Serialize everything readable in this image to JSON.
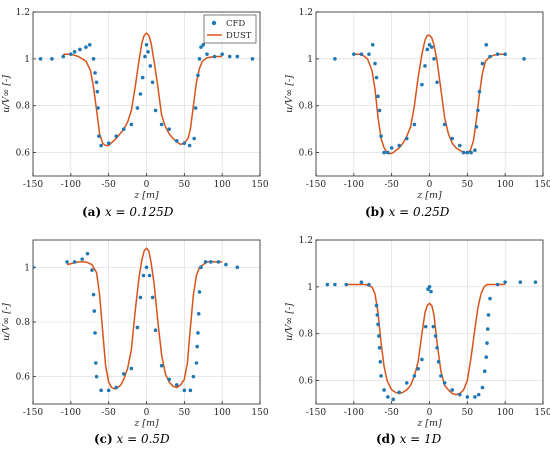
{
  "figure": {
    "legend": {
      "entries": [
        "CFD",
        "DUST"
      ],
      "placement": "top-right"
    },
    "colors": {
      "cfd": "#1f77b4",
      "dust": "#d95319",
      "axis": "#262626",
      "grid": "#d9d9d9"
    }
  },
  "chart_data": [
    {
      "type": "scatter",
      "caption": {
        "letter": "(a)",
        "text": "x = 0.125D"
      },
      "xlabel": "z [m]",
      "ylabel": "u/V∞ [-]",
      "xlim": [
        -150,
        150
      ],
      "ylim": [
        0.5,
        1.2
      ],
      "xticks": [
        "-150",
        "-100",
        "-50",
        "0",
        "50",
        "100",
        "150"
      ],
      "yticks": [
        "0.6",
        "0.8",
        "1",
        "1.2"
      ],
      "legend": [
        "CFD",
        "DUST"
      ],
      "series": [
        {
          "name": "CFD",
          "kind": "markers",
          "x": [
            -140,
            -125,
            -110,
            -100,
            -95,
            -88,
            -80,
            -75,
            -70,
            -68,
            -66,
            -65,
            -64,
            -63,
            -60,
            -50,
            -40,
            -30,
            -20,
            -12,
            -8,
            -5,
            -2,
            0,
            2,
            5,
            8,
            12,
            20,
            30,
            40,
            50,
            57,
            63,
            65,
            68,
            70,
            72,
            75,
            80,
            90,
            100,
            110,
            120,
            140
          ],
          "y": [
            1.0,
            1.0,
            1.01,
            1.02,
            1.03,
            1.04,
            1.05,
            1.06,
            1.0,
            0.94,
            0.9,
            0.86,
            0.79,
            0.67,
            0.63,
            0.64,
            0.67,
            0.7,
            0.72,
            0.79,
            0.85,
            0.92,
            1.01,
            1.06,
            1.03,
            0.97,
            0.9,
            0.78,
            0.72,
            0.7,
            0.65,
            0.64,
            0.63,
            0.66,
            0.79,
            0.93,
            1.0,
            1.05,
            1.06,
            1.02,
            1.01,
            1.02,
            1.01,
            1.01,
            1.0
          ]
        },
        {
          "name": "DUST",
          "kind": "line",
          "x": [
            -110,
            -100,
            -90,
            -80,
            -74,
            -70,
            -66,
            -62,
            -58,
            -54,
            -50,
            -45,
            -40,
            -35,
            -30,
            -25,
            -20,
            -15,
            -10,
            -6,
            -3,
            0,
            3,
            6,
            10,
            15,
            20,
            25,
            30,
            35,
            40,
            45,
            50,
            55,
            58,
            62,
            66,
            70,
            74,
            80,
            90,
            100
          ],
          "y": [
            1.02,
            1.02,
            1.01,
            0.99,
            0.95,
            0.88,
            0.78,
            0.68,
            0.64,
            0.63,
            0.63,
            0.645,
            0.66,
            0.68,
            0.7,
            0.73,
            0.78,
            0.88,
            0.99,
            1.07,
            1.1,
            1.11,
            1.1,
            1.07,
            0.99,
            0.88,
            0.76,
            0.71,
            0.68,
            0.66,
            0.645,
            0.635,
            0.64,
            0.66,
            0.7,
            0.8,
            0.9,
            0.96,
            0.99,
            1.005,
            1.01,
            1.01
          ]
        }
      ]
    },
    {
      "type": "scatter",
      "caption": {
        "letter": "(b)",
        "text": "x = 0.25D"
      },
      "xlabel": "z [m]",
      "ylabel": "u/V∞ [-]",
      "xlim": [
        -150,
        150
      ],
      "ylim": [
        0.5,
        1.2
      ],
      "xticks": [
        "-150",
        "-100",
        "-50",
        "0",
        "50",
        "100",
        "150"
      ],
      "yticks": [
        "0.6",
        "0.8",
        "1",
        "1.2"
      ],
      "legend": [],
      "series": [
        {
          "name": "CFD",
          "kind": "markers",
          "x": [
            -125,
            -100,
            -90,
            -80,
            -75,
            -72,
            -70,
            -68,
            -66,
            -64,
            -60,
            -55,
            -50,
            -40,
            -30,
            -20,
            -10,
            -6,
            -3,
            0,
            3,
            6,
            10,
            20,
            30,
            40,
            45,
            50,
            55,
            60,
            62,
            64,
            66,
            70,
            75,
            80,
            90,
            100,
            125
          ],
          "y": [
            1.0,
            1.02,
            1.02,
            1.02,
            1.06,
            0.98,
            0.92,
            0.84,
            0.78,
            0.67,
            0.6,
            0.6,
            0.62,
            0.63,
            0.66,
            0.72,
            0.89,
            0.97,
            1.04,
            1.06,
            1.05,
            1.0,
            0.9,
            0.72,
            0.66,
            0.63,
            0.6,
            0.6,
            0.6,
            0.61,
            0.71,
            0.78,
            0.86,
            0.98,
            1.06,
            1.01,
            1.02,
            1.02,
            1.0
          ]
        },
        {
          "name": "DUST",
          "kind": "line",
          "x": [
            -100,
            -90,
            -82,
            -76,
            -72,
            -68,
            -64,
            -60,
            -56,
            -52,
            -48,
            -44,
            -40,
            -35,
            -30,
            -25,
            -20,
            -15,
            -10,
            -6,
            -3,
            0,
            3,
            6,
            10,
            15,
            20,
            25,
            30,
            35,
            40,
            45,
            50,
            54,
            58,
            62,
            66,
            70,
            74,
            80,
            90,
            100
          ],
          "y": [
            1.02,
            1.02,
            1.0,
            0.95,
            0.87,
            0.75,
            0.66,
            0.62,
            0.6,
            0.595,
            0.6,
            0.61,
            0.62,
            0.64,
            0.67,
            0.71,
            0.8,
            0.92,
            1.02,
            1.08,
            1.1,
            1.1,
            1.09,
            1.06,
            0.99,
            0.87,
            0.75,
            0.68,
            0.64,
            0.62,
            0.61,
            0.6,
            0.6,
            0.61,
            0.65,
            0.74,
            0.85,
            0.94,
            0.99,
            1.01,
            1.02,
            1.02
          ]
        }
      ]
    },
    {
      "type": "scatter",
      "caption": {
        "letter": "(c)",
        "text": "x = 0.5D"
      },
      "xlabel": "z [m]",
      "ylabel": "u/V∞ [-]",
      "xlim": [
        -150,
        150
      ],
      "ylim": [
        0.5,
        1.1
      ],
      "xticks": [
        "-150",
        "-100",
        "-50",
        "0",
        "50",
        "100",
        "150"
      ],
      "yticks": [
        "0.6",
        "0.8",
        "1"
      ],
      "legend": [],
      "series": [
        {
          "name": "CFD",
          "kind": "markers",
          "x": [
            -150,
            -105,
            -95,
            -85,
            -78,
            -72,
            -70,
            -69,
            -68,
            -67,
            -66,
            -60,
            -50,
            -40,
            -30,
            -20,
            -12,
            -8,
            -4,
            0,
            4,
            8,
            12,
            20,
            30,
            40,
            50,
            58,
            62,
            66,
            67,
            68,
            69,
            70,
            72,
            78,
            85,
            95,
            105,
            120
          ],
          "y": [
            1.0,
            1.02,
            1.02,
            1.03,
            1.05,
            0.99,
            0.9,
            0.84,
            0.76,
            0.65,
            0.6,
            0.55,
            0.55,
            0.56,
            0.61,
            0.63,
            0.78,
            0.89,
            0.97,
            1.0,
            0.97,
            0.89,
            0.77,
            0.64,
            0.59,
            0.57,
            0.55,
            0.55,
            0.6,
            0.65,
            0.71,
            0.76,
            0.83,
            0.91,
            1.0,
            1.02,
            1.02,
            1.02,
            1.01,
            1.0
          ]
        },
        {
          "name": "DUST",
          "kind": "line",
          "x": [
            -105,
            -90,
            -80,
            -72,
            -66,
            -62,
            -58,
            -54,
            -50,
            -46,
            -42,
            -38,
            -34,
            -30,
            -25,
            -20,
            -15,
            -10,
            -6,
            -3,
            0,
            3,
            6,
            10,
            15,
            20,
            25,
            30,
            35,
            40,
            45,
            50,
            54,
            58,
            62,
            66,
            70,
            75,
            80,
            90,
            100
          ],
          "y": [
            1.01,
            1.02,
            1.02,
            1.01,
            0.98,
            0.9,
            0.77,
            0.64,
            0.58,
            0.56,
            0.555,
            0.56,
            0.57,
            0.59,
            0.63,
            0.7,
            0.84,
            0.96,
            1.03,
            1.06,
            1.07,
            1.06,
            1.02,
            0.94,
            0.8,
            0.68,
            0.61,
            0.58,
            0.565,
            0.56,
            0.57,
            0.59,
            0.65,
            0.78,
            0.9,
            0.97,
            1.0,
            1.01,
            1.02,
            1.02,
            1.02
          ]
        }
      ]
    },
    {
      "type": "scatter",
      "caption": {
        "letter": "(d)",
        "text": "x = 1D"
      },
      "xlabel": "z [m]",
      "ylabel": "u/V∞ [-]",
      "xlim": [
        -150,
        150
      ],
      "ylim": [
        0.5,
        1.2
      ],
      "xticks": [
        "-150",
        "-100",
        "-50",
        "0",
        "50",
        "100",
        "150"
      ],
      "yticks": [
        "0.6",
        "0.8",
        "1",
        "1.2"
      ],
      "legend": [],
      "series": [
        {
          "name": "CFD",
          "kind": "markers",
          "x": [
            -135,
            -125,
            -110,
            -90,
            -80,
            -70,
            -69,
            -68,
            -67,
            -66,
            -65,
            -64,
            -60,
            -55,
            -48,
            -40,
            -30,
            -20,
            -15,
            -10,
            -5,
            -2,
            0,
            2,
            5,
            8,
            10,
            12,
            15,
            20,
            30,
            40,
            50,
            60,
            65,
            70,
            73,
            75,
            76,
            77,
            78,
            80,
            90,
            100,
            120,
            140
          ],
          "y": [
            1.01,
            1.01,
            1.01,
            1.02,
            1.01,
            0.92,
            0.88,
            0.84,
            0.79,
            0.74,
            0.68,
            0.62,
            0.56,
            0.53,
            0.52,
            0.55,
            0.59,
            0.62,
            0.65,
            0.69,
            0.83,
            0.99,
            1.0,
            0.98,
            0.83,
            0.79,
            0.74,
            0.68,
            0.62,
            0.59,
            0.56,
            0.54,
            0.53,
            0.53,
            0.54,
            0.57,
            0.64,
            0.7,
            0.76,
            0.82,
            0.88,
            0.95,
            1.01,
            1.02,
            1.02,
            1.02
          ]
        },
        {
          "name": "DUST",
          "kind": "line",
          "x": [
            -110,
            -95,
            -85,
            -76,
            -72,
            -68,
            -64,
            -60,
            -56,
            -50,
            -45,
            -40,
            -35,
            -30,
            -25,
            -20,
            -15,
            -10,
            -6,
            -3,
            0,
            3,
            6,
            10,
            15,
            20,
            25,
            30,
            35,
            40,
            45,
            50,
            55,
            60,
            64,
            68,
            72,
            76,
            80,
            90,
            100
          ],
          "y": [
            1.01,
            1.01,
            1.01,
            1.0,
            0.97,
            0.89,
            0.76,
            0.66,
            0.6,
            0.56,
            0.55,
            0.545,
            0.55,
            0.56,
            0.58,
            0.62,
            0.68,
            0.8,
            0.89,
            0.92,
            0.93,
            0.92,
            0.88,
            0.76,
            0.64,
            0.58,
            0.56,
            0.545,
            0.54,
            0.545,
            0.56,
            0.6,
            0.7,
            0.82,
            0.91,
            0.97,
            1.0,
            1.01,
            1.01,
            1.01,
            1.01
          ]
        }
      ]
    }
  ]
}
